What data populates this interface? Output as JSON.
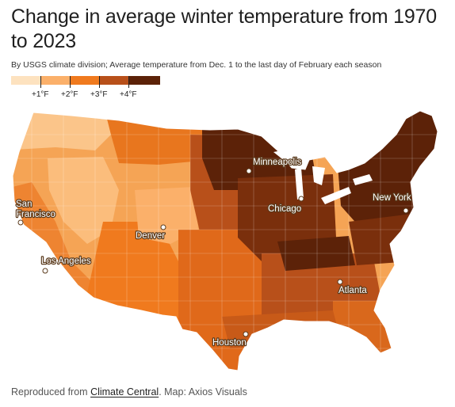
{
  "title": "Change in average winter temperature from 1970 to 2023",
  "subtitle": "By USGS climate division; Average temperature from Dec. 1 to the last day of February each season",
  "legend": {
    "colors": [
      "#fde2bf",
      "#fbb06a",
      "#f07a1e",
      "#b8501a",
      "#5c2208"
    ],
    "tick_labels": [
      "+1°F",
      "+2°F",
      "+3°F",
      "+4°F"
    ]
  },
  "cities": [
    {
      "name": "San",
      "name2": "Francisco"
    },
    {
      "name": "Los Angeles"
    },
    {
      "name": "Denver"
    },
    {
      "name": "Minneapolis"
    },
    {
      "name": "Chicago"
    },
    {
      "name": "New York"
    },
    {
      "name": "Atlanta"
    },
    {
      "name": "Houston"
    }
  ],
  "footer": {
    "prefix": "Reproduced from ",
    "link": "Climate Central",
    "suffix": ". Map: Axios Visuals"
  }
}
